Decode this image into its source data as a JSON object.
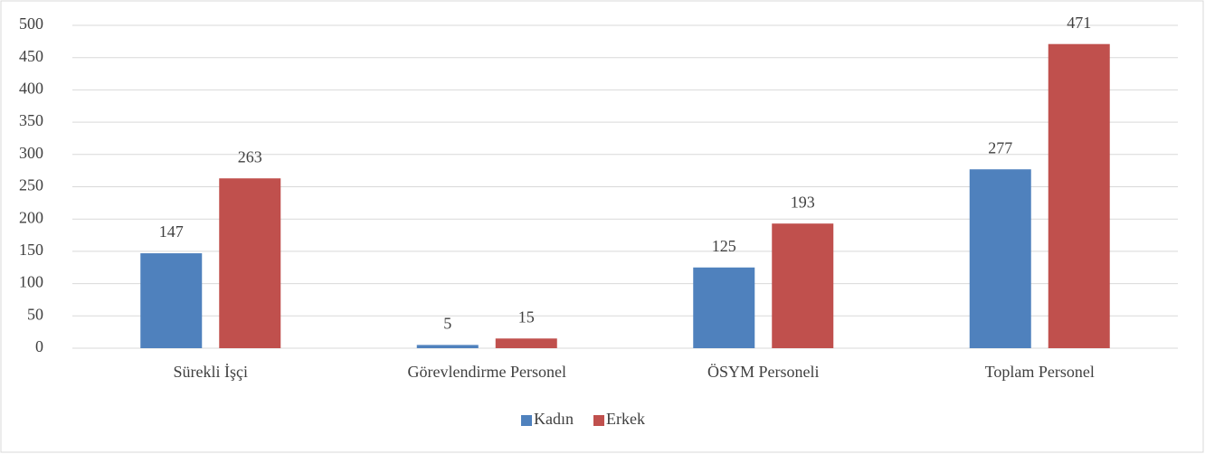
{
  "chart_data": {
    "type": "bar",
    "categories": [
      "Sürekli İşçi",
      "Görevlendirme Personel",
      "ÖSYM Personeli",
      "Toplam Personel"
    ],
    "series": [
      {
        "name": "Kadın",
        "color": "#4f81bd",
        "values": [
          147,
          5,
          125,
          277
        ]
      },
      {
        "name": "Erkek",
        "color": "#c0504d",
        "values": [
          263,
          15,
          193,
          471
        ]
      }
    ],
    "ylim": [
      0,
      500
    ],
    "yticks": [
      0,
      50,
      100,
      150,
      200,
      250,
      300,
      350,
      400,
      450,
      500
    ],
    "grid": true,
    "legend": "bottom"
  }
}
